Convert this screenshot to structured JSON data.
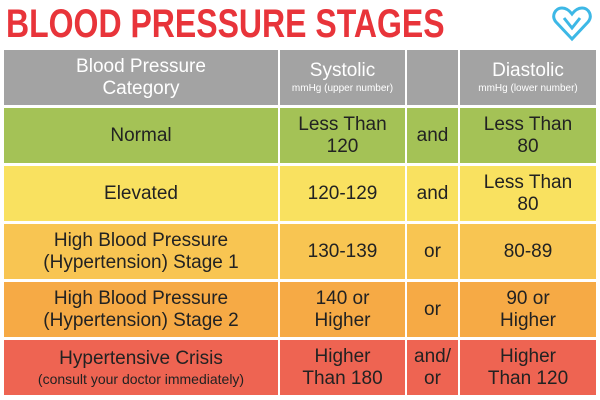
{
  "title": "BLOOD PRESSURE STAGES",
  "table": {
    "header": {
      "category": [
        "Blood Pressure",
        "Category"
      ],
      "systolic": "Systolic",
      "systolic_unit": "mmHg (upper number)",
      "diastolic": "Diastolic",
      "diastolic_unit": "mmHg (lower number)"
    },
    "rows": [
      {
        "category": [
          "Normal"
        ],
        "systolic": [
          "Less Than",
          "120"
        ],
        "connector": [
          "and"
        ],
        "diastolic": [
          "Less Than",
          "80"
        ]
      },
      {
        "category": [
          "Elevated"
        ],
        "systolic": [
          "120-129"
        ],
        "connector": [
          "and"
        ],
        "diastolic": [
          "Less Than",
          "80"
        ]
      },
      {
        "category": [
          "High Blood Pressure",
          "(Hypertension) Stage 1"
        ],
        "systolic": [
          "130-139"
        ],
        "connector": [
          "or"
        ],
        "diastolic": [
          "80-89"
        ]
      },
      {
        "category": [
          "High Blood Pressure",
          "(Hypertension) Stage 2"
        ],
        "systolic": [
          "140 or",
          "Higher"
        ],
        "connector": [
          "or"
        ],
        "diastolic": [
          "90 or",
          "Higher"
        ]
      },
      {
        "category": [
          "Hypertensive Crisis",
          "(consult your doctor immediately)"
        ],
        "systolic": [
          "Higher",
          "Than 180"
        ],
        "connector": [
          "and/",
          "or"
        ],
        "diastolic": [
          "Higher",
          "Than 120"
        ]
      }
    ]
  }
}
